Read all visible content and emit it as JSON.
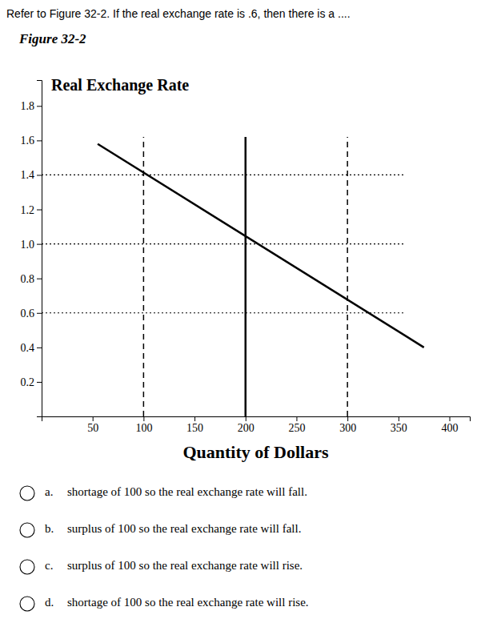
{
  "chart_data": {
    "type": "line",
    "title": "Refer to Figure 32-2.  If the real exchange rate is .6, then there is a ....",
    "subtitle": "Figure 32-2",
    "ylabel": "Real Exchange Rate",
    "xlabel": "Quantity of Dollars",
    "xlim": [
      0,
      420
    ],
    "ylim": [
      0,
      1.95
    ],
    "xticks": [
      50,
      100,
      150,
      200,
      250,
      300,
      350,
      400
    ],
    "yticks": [
      0.2,
      0.4,
      0.6,
      0.8,
      {
        "value": 1.0,
        "label": "1.0"
      },
      1.2,
      1.4,
      1.6,
      1.8
    ],
    "series": [
      {
        "x": [
          55,
          375
        ],
        "values": [
          1.58,
          0.4
        ],
        "color": "#000000",
        "line_style": "solid"
      },
      {
        "x": [
          200,
          200
        ],
        "values": [
          0,
          1.62
        ],
        "color": "#000000",
        "line_style": "solid"
      },
      {
        "x": [
          100,
          100
        ],
        "values": [
          0,
          1.62
        ],
        "color": "#000000",
        "line_style": "dashed"
      },
      {
        "x": [
          300,
          300
        ],
        "values": [
          0,
          1.62
        ],
        "color": "#000000",
        "line_style": "dashed"
      },
      {
        "x": [
          0,
          355
        ],
        "values": [
          1.4,
          1.4
        ],
        "color": "#000000",
        "line_style": "dotted"
      },
      {
        "x": [
          0,
          355
        ],
        "values": [
          1.0,
          1.0
        ],
        "color": "#000000",
        "line_style": "dotted"
      },
      {
        "x": [
          0,
          355
        ],
        "values": [
          0.6,
          0.6
        ],
        "color": "#000000",
        "line_style": "dotted"
      }
    ],
    "choice_letters": [
      "a.",
      "b.",
      "c.",
      "d."
    ],
    "choices": [
      "shortage of 100 so the real exchange rate will fall.",
      "surplus of 100 so the real exchange rate will fall.",
      "surplus of 100 so the real exchange rate will rise.",
      "shortage of 100 so the real exchange rate will rise."
    ]
  }
}
